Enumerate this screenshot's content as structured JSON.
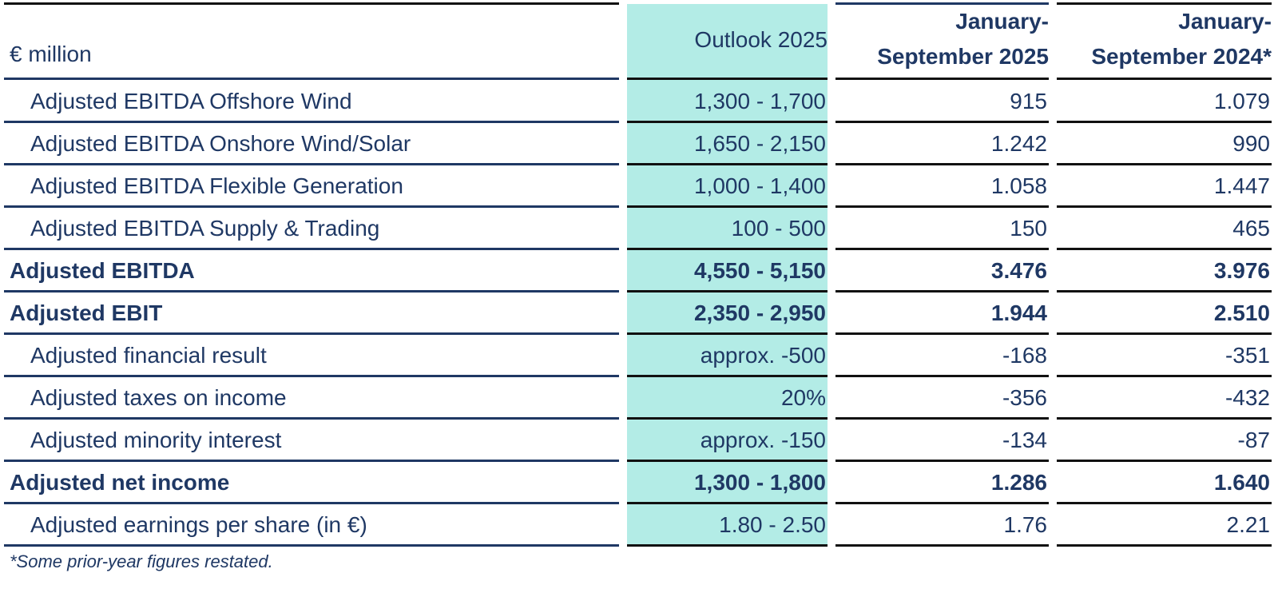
{
  "table": {
    "header": [
      "€ million",
      [
        "Outlook 2025"
      ],
      [
        "January-",
        "September 2025"
      ],
      [
        "January-",
        "September 2024*"
      ]
    ],
    "rows": [
      {
        "label": "Adjusted EBITDA Offshore Wind",
        "values": [
          "1,300 - 1,700",
          "915",
          "1.079"
        ],
        "bold": false
      },
      {
        "label": "Adjusted EBITDA Onshore Wind/Solar",
        "values": [
          "1,650 - 2,150",
          "1.242",
          "990"
        ],
        "bold": false
      },
      {
        "label": "Adjusted EBITDA Flexible Generation",
        "values": [
          "1,000 - 1,400",
          "1.058",
          "1.447"
        ],
        "bold": false
      },
      {
        "label": "Adjusted EBITDA Supply & Trading",
        "values": [
          "100 - 500",
          "150",
          "465"
        ],
        "bold": false
      },
      {
        "label": "Adjusted EBITDA",
        "values": [
          "4,550 - 5,150",
          "3.476",
          "3.976"
        ],
        "bold": true
      },
      {
        "label": "Adjusted EBIT",
        "values": [
          "2,350 - 2,950",
          "1.944",
          "2.510"
        ],
        "bold": true
      },
      {
        "label": "Adjusted financial result",
        "values": [
          "approx. -500",
          "-168",
          "-351"
        ],
        "bold": false
      },
      {
        "label": "Adjusted taxes on income",
        "values": [
          "20%",
          "-356",
          "-432"
        ],
        "bold": false
      },
      {
        "label": "Adjusted minority interest",
        "values": [
          "approx. -150",
          "-134",
          "-87"
        ],
        "bold": false
      },
      {
        "label": "Adjusted net income",
        "values": [
          "1,300 - 1,800",
          "1.286",
          "1.640"
        ],
        "bold": true
      },
      {
        "label": "Adjusted earnings per share (in €)",
        "values": [
          "1.80 - 2.50",
          "1.76",
          "2.21"
        ],
        "bold": false
      }
    ],
    "footnote": "*Some prior-year figures restated."
  }
}
